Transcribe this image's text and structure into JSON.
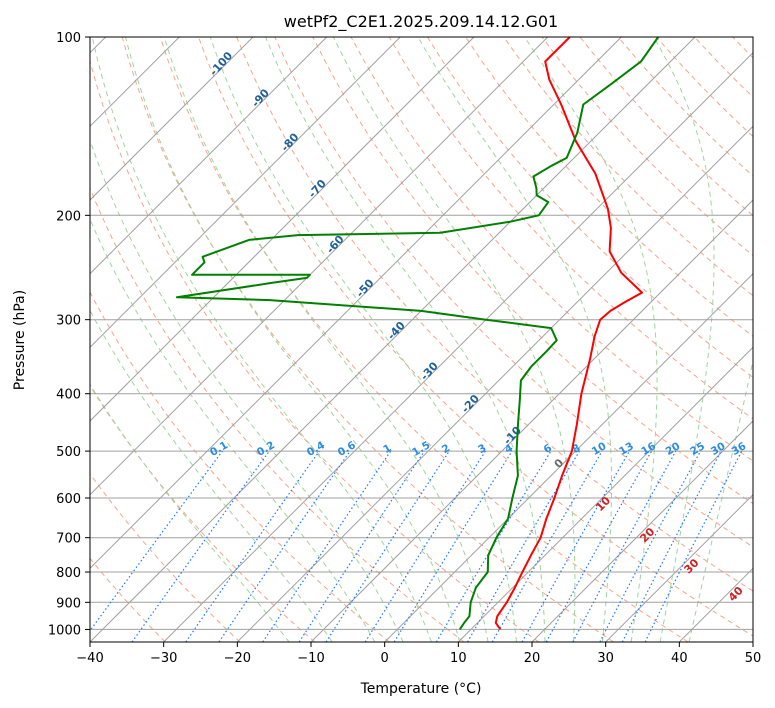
{
  "chart_data": {
    "type": "line",
    "title": "wetPf2_C2E1.2025.209.14.12.G01",
    "xlabel": "Temperature (°C)",
    "ylabel": "Pressure (hPa)",
    "xlim": [
      -40,
      50
    ],
    "ylim": [
      1050,
      100
    ],
    "y_scale": "log",
    "grid": true,
    "x_ticks": [
      -40,
      -30,
      -20,
      -10,
      0,
      10,
      20,
      30,
      40,
      50
    ],
    "y_ticks": [
      100,
      200,
      300,
      400,
      500,
      600,
      700,
      800,
      900,
      1000
    ],
    "skew": "45-degree skewed isotherms",
    "series": [
      {
        "color": "#ff0000",
        "points": [
          [
            14,
            1000
          ],
          [
            12.5,
            975
          ],
          [
            11.8,
            950
          ],
          [
            11.2,
            900
          ],
          [
            10.3,
            850
          ],
          [
            9.2,
            800
          ],
          [
            8.1,
            750
          ],
          [
            7,
            700
          ],
          [
            5.2,
            650
          ],
          [
            3.5,
            600
          ],
          [
            1.5,
            550
          ],
          [
            -0.5,
            500
          ],
          [
            -3.5,
            450
          ],
          [
            -7,
            400
          ],
          [
            -10.5,
            350
          ],
          [
            -13,
            320
          ],
          [
            -14.5,
            300
          ],
          [
            -14.3,
            290
          ],
          [
            -13.5,
            280
          ],
          [
            -12.5,
            270
          ],
          [
            -18,
            250
          ],
          [
            -22.5,
            230
          ],
          [
            -25.5,
            210
          ],
          [
            -28.5,
            195
          ],
          [
            -35,
            170
          ],
          [
            -42,
            150
          ],
          [
            -49,
            130
          ],
          [
            -54,
            118
          ],
          [
            -57,
            110
          ],
          [
            -57,
            100
          ]
        ]
      },
      {
        "color": "#008000",
        "points": [
          [
            8.5,
            1000
          ],
          [
            8.2,
            975
          ],
          [
            8,
            950
          ],
          [
            6.3,
            900
          ],
          [
            5,
            850
          ],
          [
            4.5,
            800
          ],
          [
            2.3,
            750
          ],
          [
            1,
            700
          ],
          [
            0,
            650
          ],
          [
            -2.2,
            600
          ],
          [
            -4.5,
            550
          ],
          [
            -8,
            500
          ],
          [
            -11.5,
            450
          ],
          [
            -14.5,
            410
          ],
          [
            -17,
            380
          ],
          [
            -17.5,
            360
          ],
          [
            -17.5,
            340
          ],
          [
            -17.6,
            325
          ],
          [
            -20,
            310
          ],
          [
            -30,
            300
          ],
          [
            -40,
            290
          ],
          [
            -62,
            278
          ],
          [
            -75,
            275
          ],
          [
            -64,
            260
          ],
          [
            -60,
            255
          ],
          [
            -60,
            252
          ],
          [
            -76,
            252
          ],
          [
            -76,
            240
          ],
          [
            -77,
            235
          ],
          [
            -73,
            220
          ],
          [
            -67,
            216
          ],
          [
            -48,
            214
          ],
          [
            -40,
            205
          ],
          [
            -37,
            200
          ],
          [
            -37.5,
            190
          ],
          [
            -40,
            185
          ],
          [
            -41,
            180
          ],
          [
            -43,
            172
          ],
          [
            -42,
            165
          ],
          [
            -41,
            160
          ],
          [
            -43,
            145
          ],
          [
            -46,
            130
          ],
          [
            -45,
            120
          ],
          [
            -44,
            110
          ],
          [
            -45,
            100
          ]
        ]
      }
    ],
    "dry_adiabat_labels": [
      "-100",
      "-90",
      "-80",
      "-70",
      "-60",
      "-50",
      "-40",
      "-30",
      "-20",
      "-10"
    ],
    "mixing_ratio_labels": [
      "0.1",
      "0.2",
      "0.4",
      "0.6",
      "1",
      "1.5",
      "2",
      "3",
      "4",
      "6",
      "8",
      "10",
      "13",
      "16",
      "20",
      "25",
      "30",
      "36"
    ],
    "moist_adiabat_labels": [
      "0",
      "10",
      "20",
      "30",
      "40"
    ],
    "colors": {
      "temperature": "#ff0000",
      "dewpoint": "#008000",
      "isotherm": "#a0a0a0",
      "isobar": "#a0a0a0",
      "dry_adiabat": "#f4a58a",
      "moist_adiabat": "#9fd49f",
      "mixing_ratio": "#1f77ff",
      "dry_label": "#1f5f9a",
      "mixing_label": "#2b8ce0",
      "moist_label": "#d02020"
    }
  }
}
